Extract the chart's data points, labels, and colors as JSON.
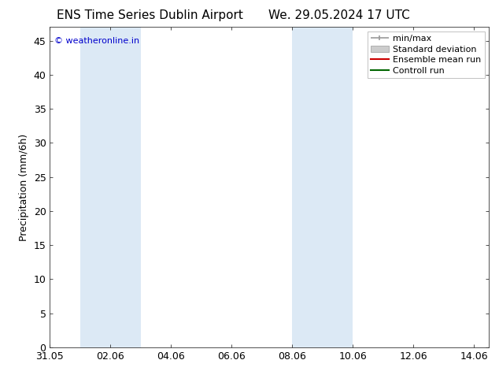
{
  "title_left": "ENS Time Series Dublin Airport",
  "title_right": "We. 29.05.2024 17 UTC",
  "ylabel": "Precipitation (mm/6h)",
  "watermark": "© weatheronline.in",
  "watermark_color": "#0000cc",
  "bg_color": "#ffffff",
  "plot_bg_color": "#ffffff",
  "shaded_bands": [
    {
      "xmin": 1.0,
      "xmax": 3.0,
      "color": "#dce9f5"
    },
    {
      "xmin": 8.0,
      "xmax": 10.0,
      "color": "#dce9f5"
    }
  ],
  "x_ticks": [
    0,
    2,
    4,
    6,
    8,
    10,
    12,
    14
  ],
  "x_tick_labels": [
    "31.05",
    "02.06",
    "04.06",
    "06.06",
    "08.06",
    "10.06",
    "12.06",
    "14.06"
  ],
  "xlim": [
    0,
    14.5
  ],
  "ylim": [
    0,
    47
  ],
  "y_ticks": [
    0,
    5,
    10,
    15,
    20,
    25,
    30,
    35,
    40,
    45
  ],
  "title_fontsize": 11,
  "tick_fontsize": 9,
  "legend_fontsize": 8,
  "ylabel_fontsize": 9,
  "watermark_fontsize": 8
}
